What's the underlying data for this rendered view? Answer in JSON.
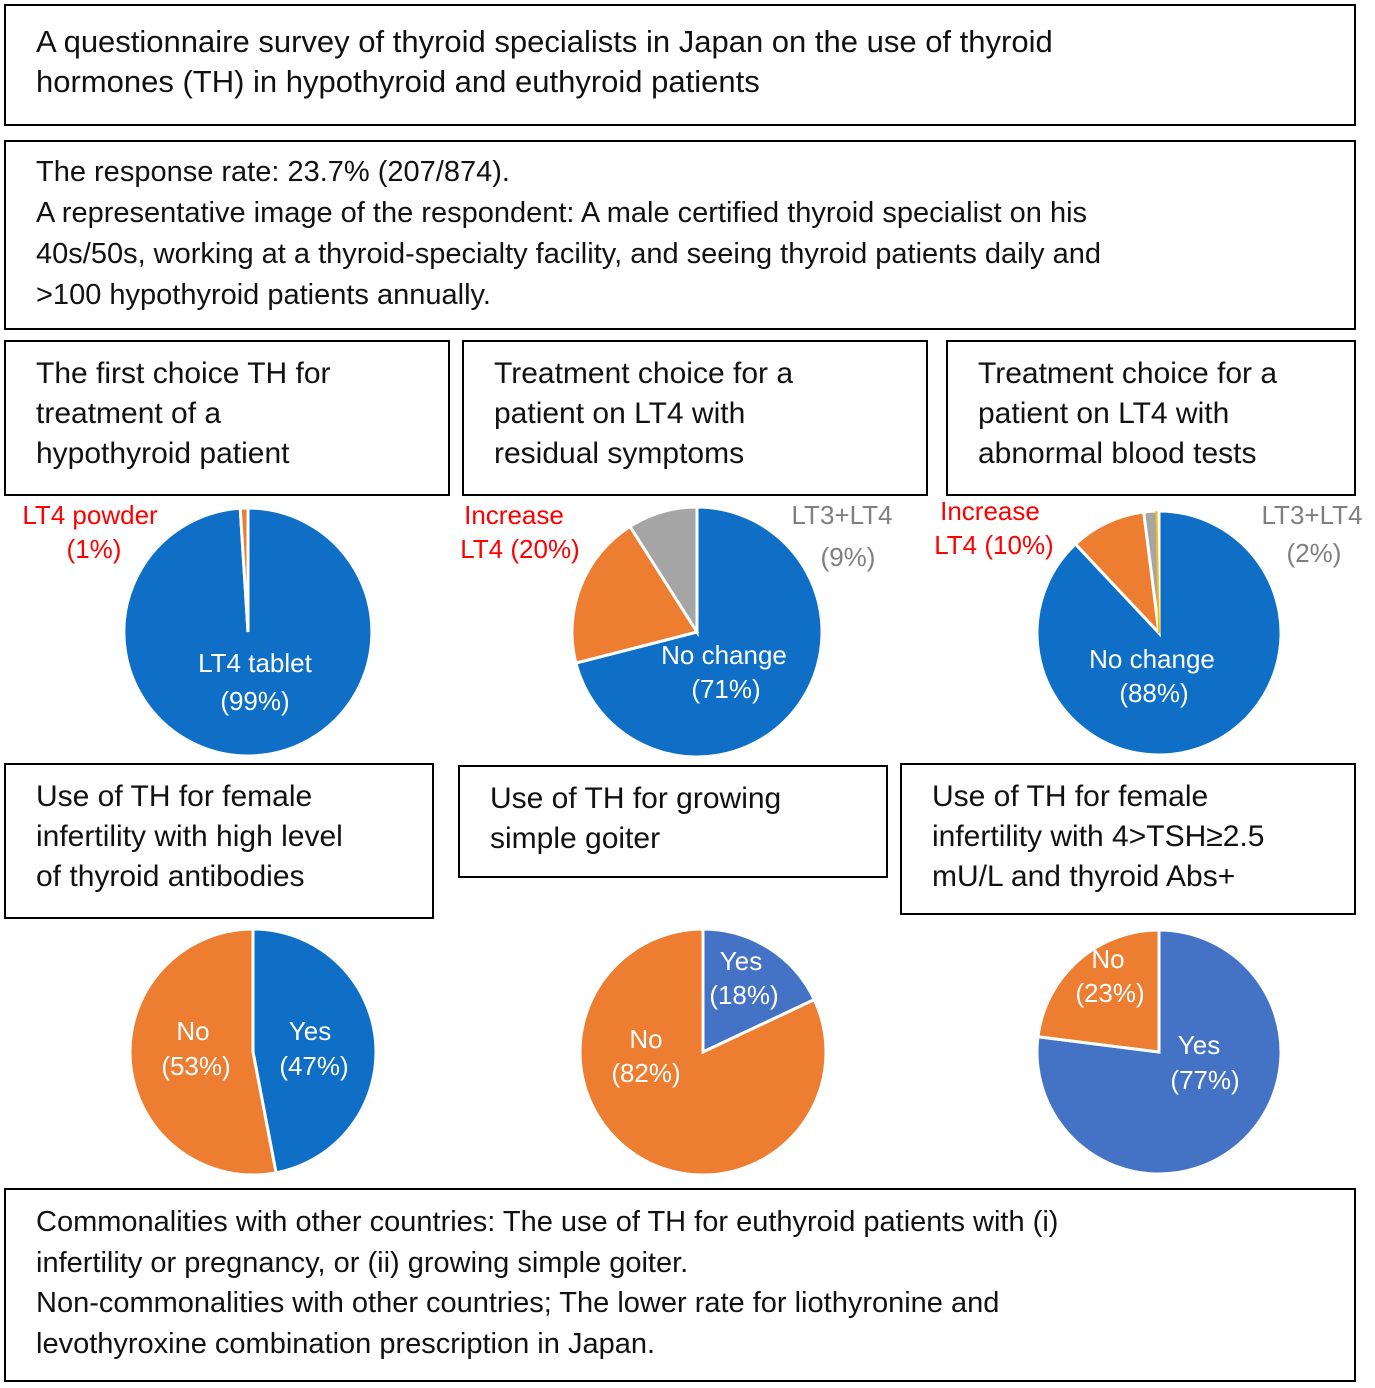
{
  "header": {
    "title": "A questionnaire survey of thyroid specialists in Japan on the use of thyroid\nhormones (TH) in hypothyroid and euthyroid patients"
  },
  "respondents": {
    "text": "The response rate: 23.7% (207/874).\nA representative image of the respondent: A male certified thyroid specialist on his\n40s/50s, working at a thyroid-specialty facility, and seeing thyroid patients daily and\n>100 hypothyroid patients annually."
  },
  "footer": {
    "text": "Commonalities with other countries: The use of TH for euthyroid patients with (i)\ninfertility or pregnancy, or (ii) growing simple goiter.\nNon-commonalities with other countries; The lower rate for liothyronine and\nlevothyroxine combination prescription in Japan."
  },
  "colors": {
    "blue": "#0f6fc6",
    "blue_light": "#4472c4",
    "orange": "#ed7d31",
    "gray": "#a5a5a5",
    "yellow": "#ffc000",
    "red_label": "#ff0000",
    "gray_label": "#7f7f7f",
    "white_label": "#ffffff"
  },
  "chart_data": [
    {
      "type": "pie",
      "title": "The first choice TH for\ntreatment of a\nhypothyroid patient",
      "slices": [
        {
          "label": "LT4 tablet",
          "pct_text": "(99%)",
          "value": 99,
          "color": "blue"
        },
        {
          "label": "LT4 powder",
          "pct_text": "(1%)",
          "value": 1,
          "color": "orange"
        }
      ]
    },
    {
      "type": "pie",
      "title": "Treatment choice for a\npatient on LT4 with\nresidual symptoms",
      "slices": [
        {
          "label": "No change",
          "pct_text": "(71%)",
          "value": 71,
          "color": "blue"
        },
        {
          "label": "Increase\nLT4",
          "pct_text": "(20%)",
          "value": 20,
          "color": "orange"
        },
        {
          "label": "LT3+LT4",
          "pct_text": "(9%)",
          "value": 9,
          "color": "gray"
        }
      ]
    },
    {
      "type": "pie",
      "title": "Treatment choice for a\npatient on LT4 with\nabnormal blood tests",
      "slices": [
        {
          "label": "No change",
          "pct_text": "(88%)",
          "value": 88,
          "color": "blue"
        },
        {
          "label": "Increase\nLT4",
          "pct_text": "(10%)",
          "value": 10,
          "color": "orange"
        },
        {
          "label": "LT3+LT4",
          "pct_text": "(2%)",
          "value": 2,
          "color": "gray"
        }
      ]
    },
    {
      "type": "pie",
      "title": "Use of TH for female\ninfertility with high level\nof thyroid antibodies",
      "slices": [
        {
          "label": "Yes",
          "pct_text": "(47%)",
          "value": 47,
          "color": "blue"
        },
        {
          "label": "No",
          "pct_text": "(53%)",
          "value": 53,
          "color": "orange"
        }
      ]
    },
    {
      "type": "pie",
      "title": "Use of TH for growing\nsimple goiter",
      "slices": [
        {
          "label": "Yes",
          "pct_text": "(18%)",
          "value": 18,
          "color": "blue_light"
        },
        {
          "label": "No",
          "pct_text": "(82%)",
          "value": 82,
          "color": "orange"
        }
      ]
    },
    {
      "type": "pie",
      "title": "Use of TH for female\ninfertility with 4>TSH≥2.5\nmU/L and thyroid Abs+",
      "slices": [
        {
          "label": "Yes",
          "pct_text": "(77%)",
          "value": 77,
          "color": "blue_light"
        },
        {
          "label": "No",
          "pct_text": "(23%)",
          "value": 23,
          "color": "orange"
        }
      ]
    }
  ]
}
